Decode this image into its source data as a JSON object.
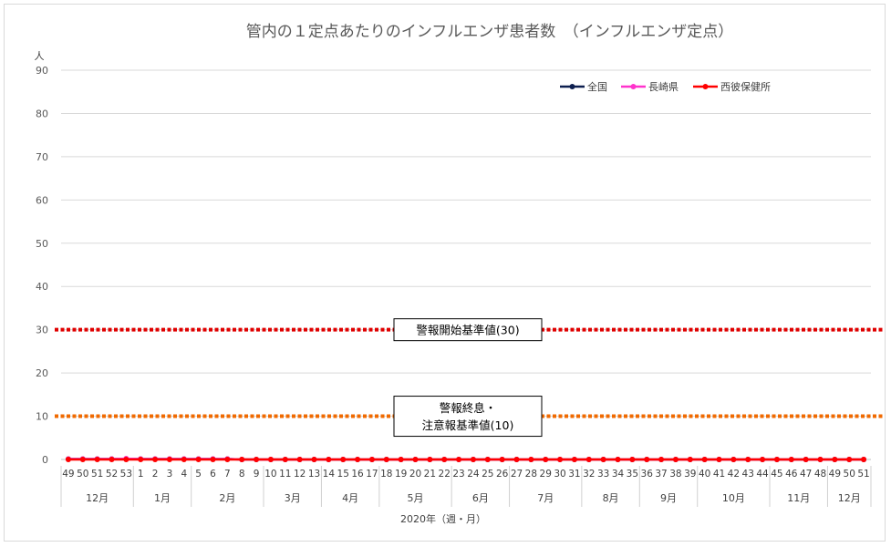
{
  "chart_data": {
    "type": "line",
    "title": "管内の１定点あたりのインフルエンザ患者数　（インフルエンザ定点）",
    "ylabel": "人",
    "xlabel": "2020年（週・月）",
    "ylim": [
      0,
      90
    ],
    "yticks": [
      "0",
      "10",
      "20",
      "30",
      "40",
      "50",
      "60",
      "70",
      "80",
      "90"
    ],
    "grid": true,
    "legend_position": "top-right",
    "x": [
      "49",
      "50",
      "51",
      "52",
      "53",
      "1",
      "2",
      "3",
      "4",
      "5",
      "6",
      "7",
      "8",
      "9",
      "10",
      "11",
      "12",
      "13",
      "14",
      "15",
      "16",
      "17",
      "18",
      "19",
      "20",
      "21",
      "22",
      "23",
      "24",
      "25",
      "26",
      "27",
      "28",
      "29",
      "30",
      "31",
      "32",
      "33",
      "34",
      "35",
      "36",
      "37",
      "38",
      "39",
      "40",
      "41",
      "42",
      "43",
      "44",
      "45",
      "46",
      "47",
      "48",
      "49",
      "50",
      "51"
    ],
    "months": [
      {
        "label": "12月",
        "start": 0,
        "end": 5
      },
      {
        "label": "1月",
        "start": 5,
        "end": 9
      },
      {
        "label": "2月",
        "start": 9,
        "end": 14
      },
      {
        "label": "3月",
        "start": 14,
        "end": 18
      },
      {
        "label": "4月",
        "start": 18,
        "end": 22
      },
      {
        "label": "5月",
        "start": 22,
        "end": 27
      },
      {
        "label": "6月",
        "start": 27,
        "end": 31
      },
      {
        "label": "7月",
        "start": 31,
        "end": 36
      },
      {
        "label": "8月",
        "start": 36,
        "end": 40
      },
      {
        "label": "9月",
        "start": 40,
        "end": 44
      },
      {
        "label": "10月",
        "start": 44,
        "end": 49
      },
      {
        "label": "11月",
        "start": 49,
        "end": 53
      },
      {
        "label": "12月",
        "start": 53,
        "end": 56
      }
    ],
    "series": [
      {
        "name": "全国",
        "color": "#0d1f4f",
        "values": [
          0.1,
          0.1,
          0.1,
          0.1,
          0.1,
          0.1,
          0.1,
          0.1,
          0.1,
          0.1,
          0.1,
          0.1,
          0,
          0,
          0,
          0,
          0,
          0,
          0,
          0,
          0,
          0,
          0,
          0,
          0,
          0,
          0,
          0,
          0,
          0,
          0,
          0,
          0,
          0,
          0,
          0,
          0,
          0,
          0,
          0,
          0,
          0,
          0,
          0,
          0,
          0,
          0,
          0,
          0,
          0,
          0,
          0,
          0,
          0,
          0,
          0
        ]
      },
      {
        "name": "長崎県",
        "color": "#ff33cc",
        "values": [
          0.1,
          0.1,
          0.1,
          0.1,
          0.2,
          0.1,
          0.1,
          0.1,
          0.1,
          0.1,
          0.1,
          0.1,
          0,
          0,
          0,
          0,
          0,
          0,
          0,
          0,
          0,
          0,
          0,
          0,
          0,
          0,
          0,
          0,
          0,
          0,
          0,
          0,
          0,
          0,
          0,
          0,
          0,
          0,
          0,
          0,
          0,
          0,
          0,
          0,
          0,
          0,
          0,
          0,
          0,
          0,
          0,
          0,
          0,
          0,
          0,
          0
        ]
      },
      {
        "name": "西彼保健所",
        "color": "#ff0000",
        "values": [
          0,
          0,
          0,
          0,
          0,
          0,
          0,
          0,
          0,
          0,
          0,
          0,
          0,
          0,
          0,
          0,
          0,
          0,
          0,
          0,
          0,
          0,
          0,
          0,
          0,
          0,
          0,
          0,
          0,
          0,
          0,
          0,
          0,
          0,
          0,
          0,
          0,
          0,
          0,
          0,
          0,
          0,
          0,
          0,
          0,
          0,
          0,
          0,
          0,
          0,
          0,
          0,
          0,
          0,
          0,
          0
        ]
      }
    ],
    "reference_lines": [
      {
        "label": "警報開始基準値(30)",
        "value": 30,
        "color": "#e00000"
      },
      {
        "label": "警報終息・\n注意報基準値(10)",
        "value": 10,
        "color": "#f06a00"
      }
    ]
  }
}
